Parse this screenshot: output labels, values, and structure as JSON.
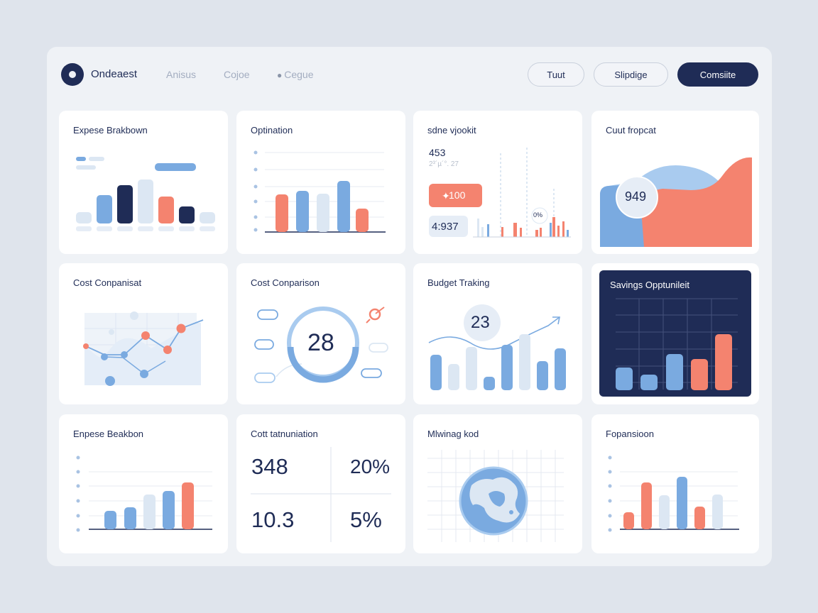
{
  "header": {
    "brand": "Ondeaest",
    "nav": [
      "Anisus",
      "Cojoe",
      "Cegue"
    ],
    "buttons": {
      "tuut": "Tuut",
      "slipdige": "Slipdige",
      "comsite": "Comsiite"
    }
  },
  "colors": {
    "navy": "#1f2c56",
    "blue": "#7aaae0",
    "coral": "#f4836f",
    "pale": "#dce7f3"
  },
  "cards": {
    "expense_breakdown": {
      "title": "Expese Brakbown"
    },
    "optimization": {
      "title": "Optination"
    },
    "sdne_vjookit": {
      "title": "sdne vjookit",
      "stat1": "453",
      "stat1_sub": "2³´µ´°. 27",
      "badge": "100",
      "stat2": "4:937",
      "pct": "0%"
    },
    "cuut_fropcat": {
      "title": "Cuut fropcat",
      "value": "949"
    },
    "cost_companisat": {
      "title": "Cost Conpanisat"
    },
    "cost_comparison": {
      "title": "Cost Conparison",
      "gauge_value": "28"
    },
    "budget_tracking": {
      "title": "Budget Traking",
      "value": "23"
    },
    "savings": {
      "title": "Savings Opptunileit"
    },
    "expense_beakbon": {
      "title": "Enpese Beakbon"
    },
    "cott_tatnuniation": {
      "title": "Cott tatnuniation",
      "v1": "348",
      "v2": "20%",
      "v3": "10.3",
      "v4": "5%"
    },
    "mlwinag_kod": {
      "title": "Mlwinag kod"
    },
    "fopansioon": {
      "title": "Fopansioon"
    }
  }
}
